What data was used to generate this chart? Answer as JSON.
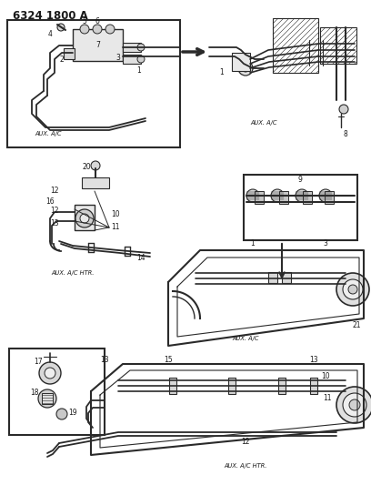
{
  "title": "6324 1800 A",
  "bg_color": "#ffffff",
  "lc": "#2a2a2a",
  "tc": "#1a1a1a",
  "fig_width": 4.08,
  "fig_height": 5.33,
  "dpi": 100,
  "aux_ac_1": "AUX. A/C",
  "aux_ac_2": "AUX. A/C",
  "aux_ac_htr_1": "AUX. A/C HTR.",
  "aux_ac_3": "AUX. A/C",
  "aux_ac_htr_2": "AUX. A/C HTR."
}
